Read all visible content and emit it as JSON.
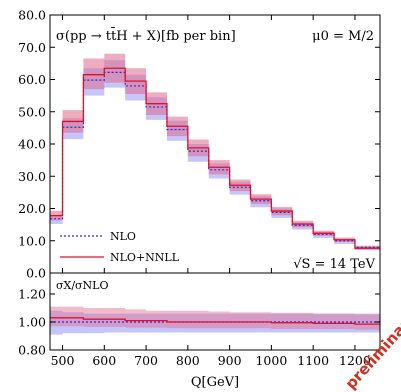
{
  "chart_data": {
    "type": "area",
    "colors": {
      "nlo": "#2a2ad8",
      "nnll": "#e0102a",
      "nlo_band": "#8c8cf5",
      "nnll_band": "#e06a8a"
    },
    "main": {
      "title_process": "σ(pp → tt̄H + X)[fb per bin]",
      "title_scale": "μ0 = M/2",
      "energy_label": "√S = 14 TeV",
      "xlim": [
        470,
        1260
      ],
      "ylim": [
        0,
        80
      ],
      "yticks": [
        "0.0",
        "10.0",
        "20.0",
        "30.0",
        "40.0",
        "50.0",
        "60.0",
        "70.0",
        "80.0"
      ],
      "yticks_values": [
        0,
        10,
        20,
        30,
        40,
        50,
        60,
        70,
        80
      ],
      "bin_edges": [
        470,
        500,
        550,
        600,
        650,
        700,
        750,
        800,
        850,
        900,
        950,
        1000,
        1050,
        1100,
        1150,
        1200,
        1260
      ],
      "series": [
        {
          "name": "NLO",
          "values": [
            16.8,
            45.2,
            59.8,
            62.2,
            58.0,
            51.5,
            44.5,
            37.8,
            32.0,
            26.6,
            22.4,
            18.8,
            14.8,
            12.0,
            10.0,
            8.0
          ],
          "band_low": [
            15.2,
            41.5,
            55.0,
            57.5,
            53.5,
            47.5,
            41.0,
            34.5,
            29.3,
            24.3,
            20.4,
            17.1,
            13.5,
            10.9,
            9.0,
            7.2
          ],
          "band_high": [
            18.0,
            48.0,
            63.5,
            66.0,
            61.5,
            54.5,
            47.2,
            40.0,
            34.0,
            28.3,
            23.8,
            20.0,
            15.7,
            12.8,
            10.6,
            8.5
          ]
        },
        {
          "name": "NLO+NNLL",
          "values": [
            17.8,
            47.0,
            61.5,
            63.5,
            59.5,
            52.5,
            45.5,
            38.8,
            32.8,
            27.2,
            22.9,
            19.2,
            15.2,
            12.3,
            10.3,
            7.7
          ],
          "band_low": [
            16.3,
            43.5,
            57.0,
            59.0,
            55.5,
            49.0,
            42.5,
            36.2,
            30.6,
            25.4,
            21.4,
            17.9,
            14.2,
            11.5,
            9.6,
            7.2
          ],
          "band_high": [
            19.3,
            50.5,
            66.5,
            68.0,
            63.5,
            56.0,
            48.5,
            41.4,
            35.0,
            29.0,
            24.4,
            20.5,
            16.2,
            13.1,
            11.0,
            8.2
          ]
        }
      ],
      "legend": [
        {
          "name": "NLO",
          "style": "dotted"
        },
        {
          "name": "NLO+NNLL",
          "style": "solid"
        }
      ]
    },
    "ratio": {
      "ylabel": "σX/σNLO",
      "ylim": [
        0.8,
        1.35
      ],
      "yticks": [
        "0.80",
        "1.00",
        "1.20"
      ],
      "yticks_values": [
        0.8,
        1.0,
        1.2
      ],
      "nlo_band_low": [
        0.91,
        0.92,
        0.92,
        0.925,
        0.925,
        0.925,
        0.925,
        0.925,
        0.925,
        0.925,
        0.925,
        0.925,
        0.925,
        0.925,
        0.925,
        0.925
      ],
      "nlo_band_high": [
        1.08,
        1.07,
        1.06,
        1.06,
        1.06,
        1.06,
        1.06,
        1.06,
        1.06,
        1.06,
        1.06,
        1.06,
        1.06,
        1.06,
        1.06,
        1.06
      ],
      "nnll_central": [
        1.03,
        1.03,
        1.02,
        1.02,
        1.01,
        1.01,
        1.0,
        1.0,
        1.0,
        1.0,
        1.0,
        0.995,
        0.995,
        0.99,
        0.99,
        0.985
      ],
      "nnll_band_low": [
        0.97,
        0.97,
        0.965,
        0.965,
        0.96,
        0.96,
        0.955,
        0.955,
        0.955,
        0.955,
        0.955,
        0.95,
        0.95,
        0.95,
        0.95,
        0.945
      ],
      "nnll_band_high": [
        1.11,
        1.11,
        1.1,
        1.1,
        1.09,
        1.08,
        1.08,
        1.08,
        1.075,
        1.07,
        1.07,
        1.065,
        1.065,
        1.06,
        1.06,
        1.055
      ]
    },
    "xaxis": {
      "label": "Q[GeV]",
      "ticks": [
        "500",
        "600",
        "700",
        "800",
        "900",
        "1000",
        "1100",
        "1200"
      ],
      "tick_values": [
        500,
        600,
        700,
        800,
        900,
        1000,
        1100,
        1200
      ]
    },
    "watermark": "preliminary"
  }
}
